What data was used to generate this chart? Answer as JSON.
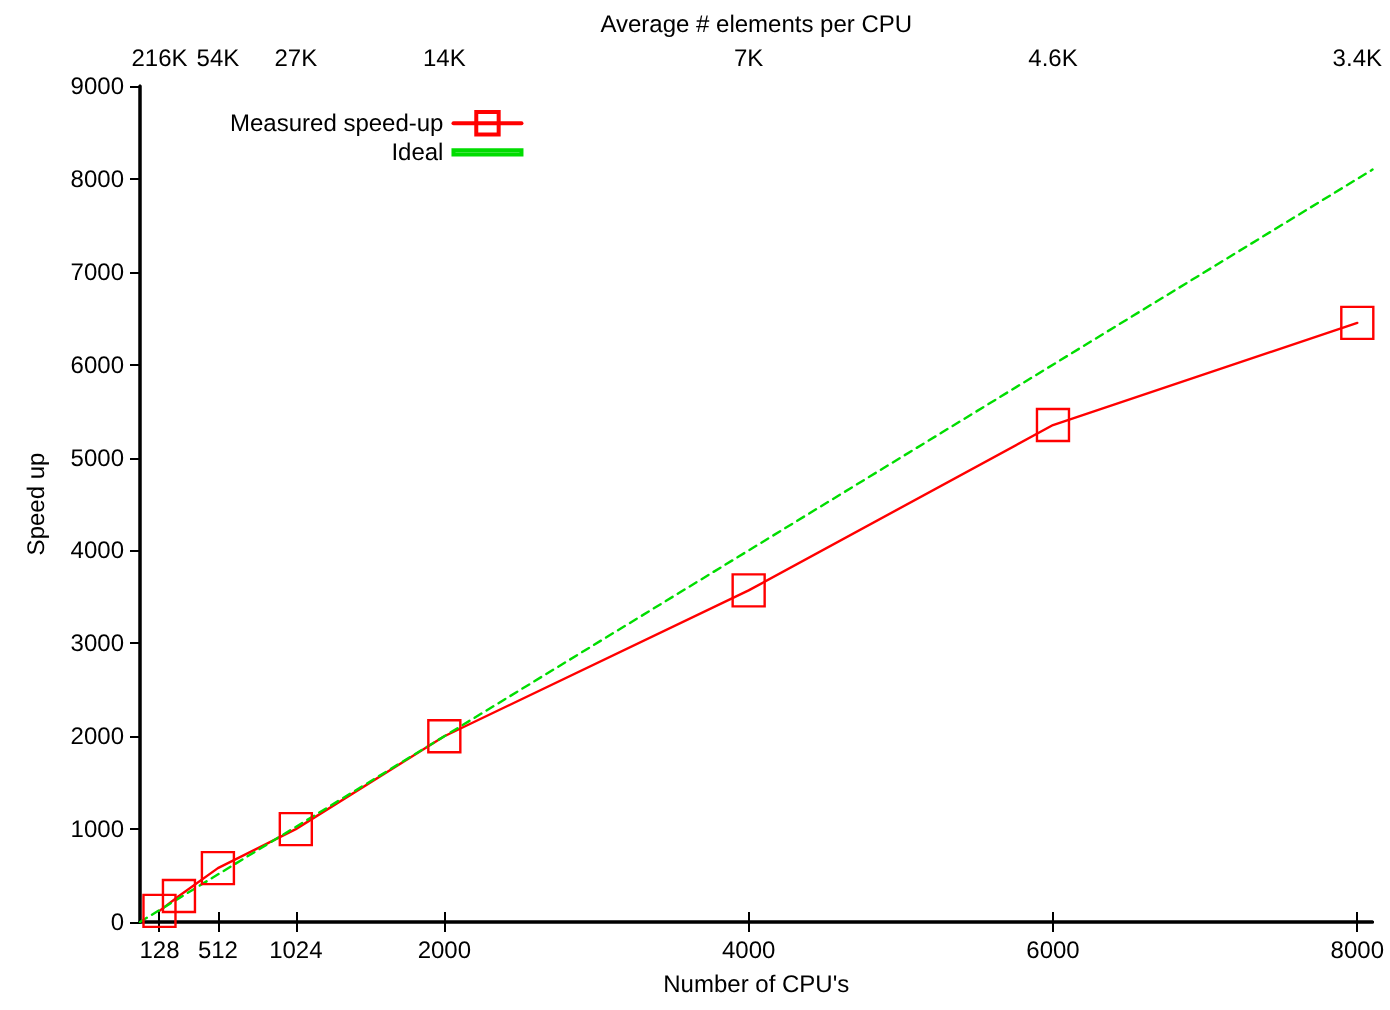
{
  "chart_data": {
    "type": "line",
    "xlabel": "Number of CPU's",
    "ylabel": "Speed up",
    "x2label": "Average # elements per CPU",
    "xlim": [
      0,
      8100
    ],
    "xticks": [
      128,
      512,
      1024,
      2000,
      4000,
      6000,
      8000
    ],
    "annotations": [
      "216K",
      "54K",
      "27K",
      "14K",
      "7K",
      "4.6K",
      "3.4K"
    ],
    "ylim": [
      0,
      9000
    ],
    "yticks": [
      0,
      1000,
      2000,
      3000,
      4000,
      5000,
      6000,
      7000,
      8000,
      9000
    ],
    "grid": false,
    "legend": "top left",
    "series": [
      {
        "name": "Measured speed-up",
        "color": "#ff0000",
        "marker": "square",
        "line_style": "solid",
        "x": [
          128,
          256,
          512,
          1024,
          2000,
          4000,
          6000,
          8000
        ],
        "values": [
          120,
          280,
          580,
          1000,
          2000,
          3570,
          5350,
          6450
        ]
      },
      {
        "name": "Ideal",
        "color": "#00dd00",
        "marker": "none",
        "line_style": "dashed",
        "x": [
          0,
          8100
        ],
        "values": [
          0,
          8100
        ]
      }
    ]
  }
}
